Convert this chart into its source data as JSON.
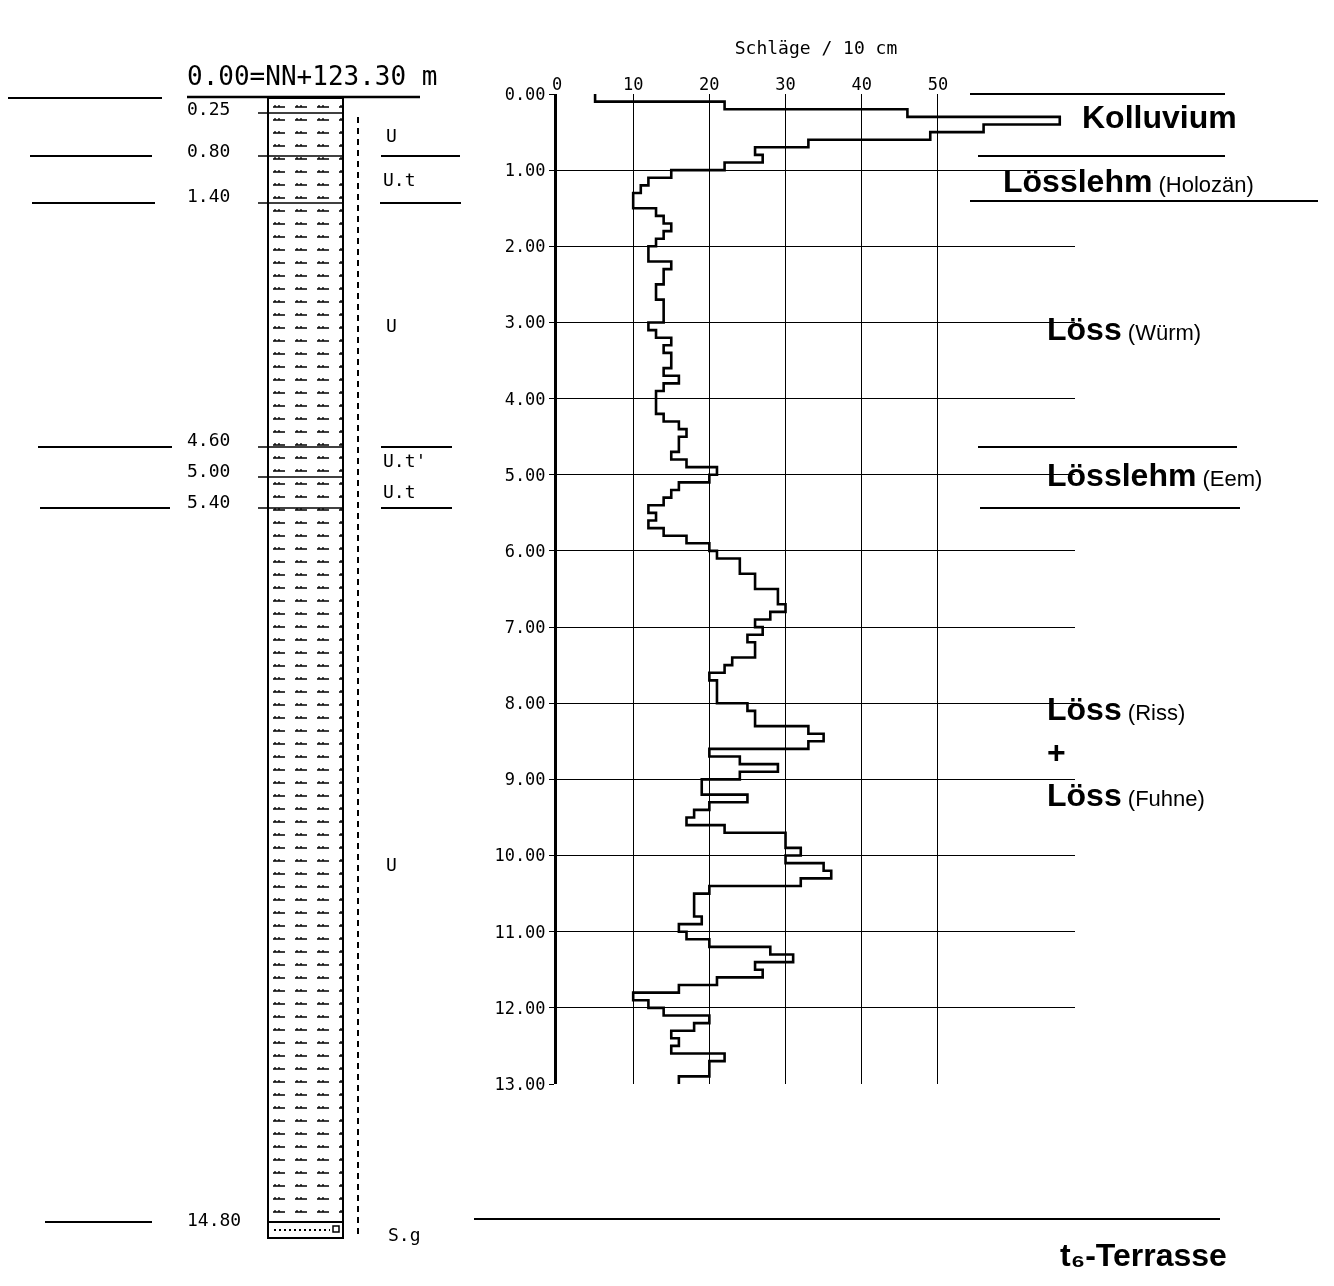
{
  "chart_data": {
    "type": "step",
    "orientation": "horizontal",
    "xlabel": "Schläge / 10 cm",
    "x": [
      0,
      0.1,
      0.2,
      0.3,
      0.4,
      0.5,
      0.6,
      0.7,
      0.8,
      0.9,
      1.0,
      1.1,
      1.2,
      1.3,
      1.5,
      1.6,
      1.7,
      1.8,
      1.9,
      2.0,
      2.2,
      2.3,
      2.5,
      2.7,
      3.0,
      3.1,
      3.2,
      3.3,
      3.4,
      3.6,
      3.7,
      3.8,
      3.9,
      4.2,
      4.3,
      4.4,
      4.5,
      4.7,
      4.8,
      4.9,
      5.0,
      5.1,
      5.2,
      5.3,
      5.4,
      5.5,
      5.6,
      5.7,
      5.8,
      5.9,
      6.0,
      6.1,
      6.3,
      6.5,
      6.7,
      6.8,
      6.9,
      7.0,
      7.1,
      7.2,
      7.4,
      7.5,
      7.6,
      7.7,
      8.0,
      8.1,
      8.3,
      8.4,
      8.5,
      8.6,
      8.7,
      8.8,
      8.9,
      9.0,
      9.2,
      9.3,
      9.4,
      9.5,
      9.6,
      9.7,
      9.9,
      10.0,
      10.1,
      10.2,
      10.3,
      10.4,
      10.5,
      10.8,
      10.9,
      11.0,
      11.1,
      11.2,
      11.3,
      11.4,
      11.5,
      11.6,
      11.7,
      11.8,
      11.9,
      12.0,
      12.1,
      12.2,
      12.3,
      12.4,
      12.5,
      12.6,
      12.7,
      12.9,
      13.0
    ],
    "series": [
      {
        "color": "#000000",
        "values": [
          5,
          22,
          46,
          66,
          56,
          49,
          33,
          26,
          27,
          22,
          15,
          12,
          11,
          10,
          13,
          14,
          15,
          14,
          13,
          12,
          15,
          14,
          13,
          14,
          12,
          13,
          15,
          14,
          15,
          14,
          16,
          14,
          13,
          14,
          16,
          17,
          16,
          15,
          17,
          21,
          20,
          16,
          15,
          14,
          12,
          13,
          12,
          14,
          17,
          20,
          21,
          24,
          26,
          29,
          30,
          28,
          26,
          27,
          25,
          26,
          23,
          22,
          20,
          21,
          25,
          26,
          33,
          35,
          33,
          20,
          24,
          29,
          24,
          19,
          25,
          20,
          18,
          17,
          22,
          30,
          32,
          30,
          35,
          36,
          32,
          20,
          18,
          19,
          16,
          17,
          20,
          28,
          31,
          26,
          27,
          21,
          16,
          10,
          12,
          14,
          20,
          18,
          15,
          16,
          15,
          22,
          20,
          16,
          16
        ]
      }
    ],
    "xlim": [
      0,
      68
    ],
    "xticks": [
      0,
      10,
      20,
      30,
      40,
      50
    ],
    "ylim": [
      13,
      0
    ],
    "yticks": [
      {
        "value": 0,
        "label": "0.00"
      },
      {
        "value": 1,
        "label": "1.00"
      },
      {
        "value": 2,
        "label": "2.00"
      },
      {
        "value": 3,
        "label": "3.00"
      },
      {
        "value": 4,
        "label": "4.00"
      },
      {
        "value": 5,
        "label": "5.00"
      },
      {
        "value": 6,
        "label": "6.00"
      },
      {
        "value": 7,
        "label": "7.00"
      },
      {
        "value": 8,
        "label": "8.00"
      },
      {
        "value": 9,
        "label": "9.00"
      },
      {
        "value": 10,
        "label": "10.00"
      },
      {
        "value": 11,
        "label": "11.00"
      },
      {
        "value": 12,
        "label": "12.00"
      },
      {
        "value": 13,
        "label": "13.00"
      }
    ],
    "grid": true,
    "annotations": [
      "0.00=NN+123.30 m",
      "0.25",
      "0.80",
      "1.40",
      "4.60",
      "5.00",
      "5.40",
      "14.80",
      "U",
      "U.t",
      "U",
      "U.t'",
      "U.t",
      "U",
      "S.g",
      "Kolluvium",
      "Lösslehm (Holozän)",
      "Löss (Würm)",
      "Lösslehm (Eem)",
      "Löss (Riss)\n+\nLöss (Fuhne)",
      "t₆-Terrasse"
    ]
  }
}
